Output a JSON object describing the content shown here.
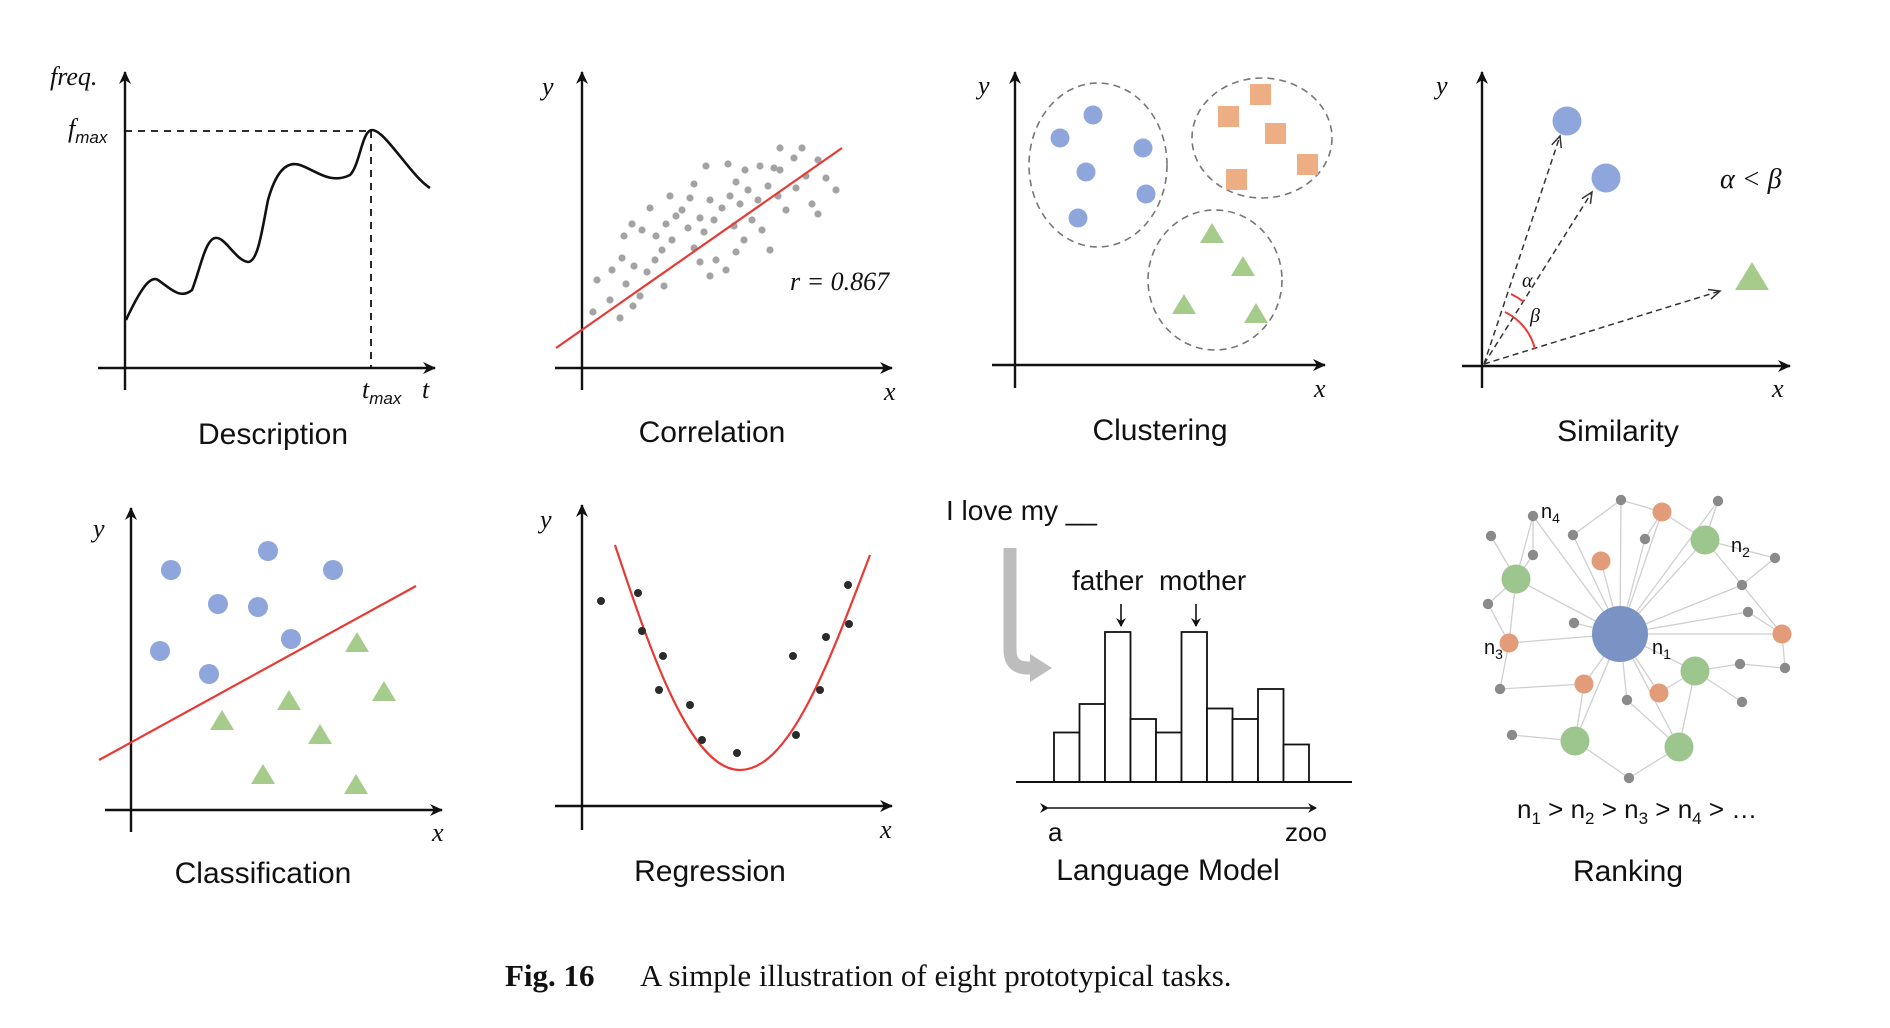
{
  "panels": {
    "description": {
      "title": "Description",
      "y_label": "freq.",
      "x_label": "t",
      "peak_y_label": "f",
      "peak_y_sub": "max",
      "peak_x_label": "t",
      "peak_x_sub": "max"
    },
    "correlation": {
      "title": "Correlation",
      "x_label": "x",
      "y_label": "y",
      "r_label": "r = 0.867"
    },
    "clustering": {
      "title": "Clustering",
      "x_label": "x",
      "y_label": "y"
    },
    "similarity": {
      "title": "Similarity",
      "x_label": "x",
      "y_label": "y",
      "alpha": "α",
      "beta": "β",
      "relation": "α < β"
    },
    "classification": {
      "title": "Classification",
      "x_label": "x",
      "y_label": "y"
    },
    "regression": {
      "title": "Regression",
      "x_label": "x",
      "y_label": "y"
    },
    "language_model": {
      "title": "Language Model",
      "prompt": "I love my __",
      "word1": "father",
      "word2": "mother",
      "range_start": "a",
      "range_end": "zoo",
      "bar_levels": [
        0.33,
        0.52,
        1.0,
        0.42,
        0.33,
        1.0,
        0.49,
        0.42,
        0.62,
        0.25
      ]
    },
    "ranking": {
      "title": "Ranking",
      "node1": "n",
      "node1_sub": "1",
      "node2": "n",
      "node2_sub": "2",
      "node3": "n",
      "node3_sub": "3",
      "node4": "n",
      "node4_sub": "4",
      "order_parts": [
        "n",
        "1",
        " > n",
        "2",
        " > n",
        "3",
        " > n",
        "4",
        " > …"
      ]
    }
  },
  "caption": {
    "number": "Fig. 16",
    "text": "A simple illustration of eight prototypical tasks."
  },
  "colors": {
    "blue": "#8fa6dc",
    "orange": "#eeae84",
    "green": "#a6cc8c",
    "red": "#e83a35",
    "gray_dot": "#a3a3a3",
    "dark_dot": "#2b2b2b",
    "rank_center": "#7b93c4",
    "rank_green": "#9cc68e",
    "rank_orange": "#e39c7a",
    "rank_gray": "#8a8a8a",
    "arrow_gray": "#bdbdbd"
  }
}
